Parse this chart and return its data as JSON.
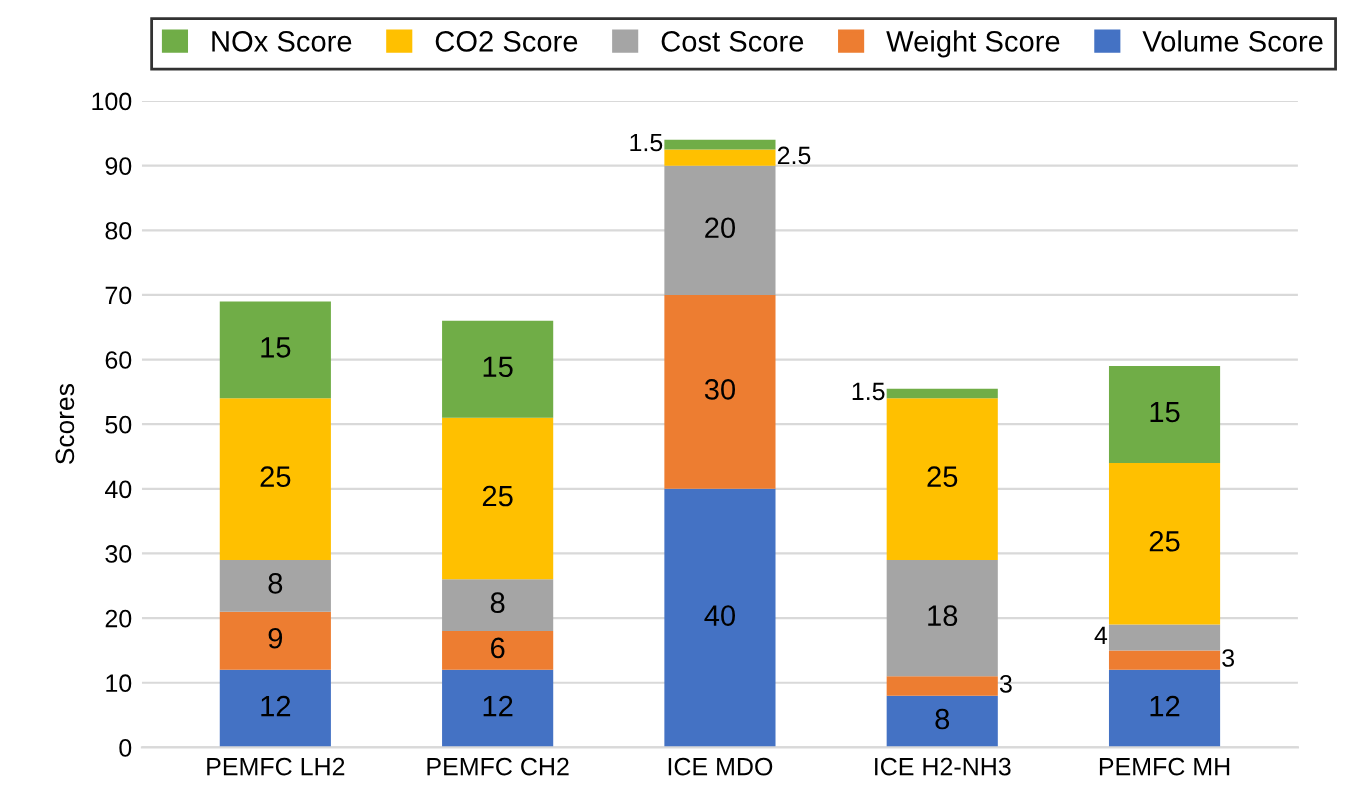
{
  "chart_data": {
    "type": "bar",
    "stacked": true,
    "ylabel": "Scores",
    "categories": [
      "PEMFC LH2",
      "PEMFC CH2",
      "ICE MDO",
      "ICE H2-NH3",
      "PEMFC MH"
    ],
    "series": [
      {
        "name": "Volume Score",
        "color": "#4472c4",
        "values": [
          12,
          12,
          40,
          8,
          12
        ]
      },
      {
        "name": "Weight Score",
        "color": "#ed7d31",
        "values": [
          9,
          6,
          30,
          3,
          3
        ]
      },
      {
        "name": "Cost Score",
        "color": "#a5a5a5",
        "values": [
          8,
          8,
          20,
          18,
          4
        ]
      },
      {
        "name": "CO2 Score",
        "color": "#ffc000",
        "values": [
          25,
          25,
          2.5,
          25,
          25
        ]
      },
      {
        "name": "NOx Score",
        "color": "#70ad47",
        "values": [
          15,
          15,
          1.5,
          1.5,
          15
        ]
      }
    ],
    "ylim": [
      0,
      100
    ],
    "yticks": [
      0,
      10,
      20,
      30,
      40,
      50,
      60,
      70,
      80,
      90,
      100
    ],
    "grid": "y",
    "legend": "top",
    "data_labels": true
  }
}
